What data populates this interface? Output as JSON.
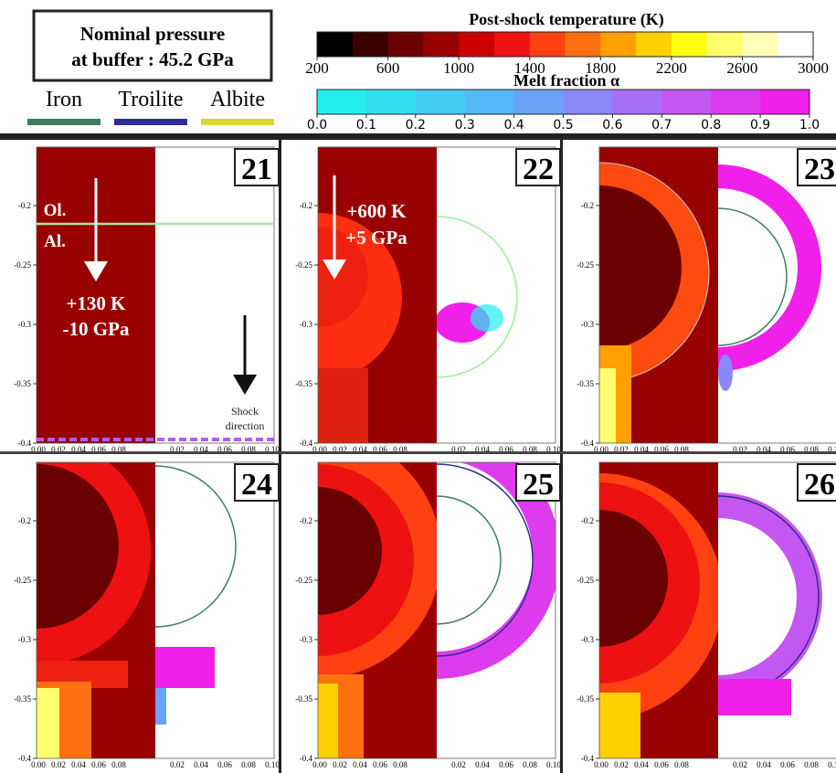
{
  "header": {
    "box": [
      "Nominal pressure",
      "at buffer : 45.2 GPa"
    ],
    "materials": [
      {
        "name": "Iron",
        "color": "#3b7d5c"
      },
      {
        "name": "Troilite",
        "color": "#2b2f8c"
      },
      {
        "name": "Albite",
        "color": "#d9d92e"
      }
    ]
  },
  "temperature_bar": {
    "title": "Post-shock temperature (K)",
    "ticks": [
      "200",
      "600",
      "1000",
      "1400",
      "1800",
      "2200",
      "2600",
      "3000"
    ],
    "colors": [
      "#000000",
      "#3a0000",
      "#6a0000",
      "#990000",
      "#cc0000",
      "#ee1111",
      "#ff4010",
      "#ff7010",
      "#ffa000",
      "#ffd000",
      "#ffff10",
      "#ffff70",
      "#ffffb8",
      "#ffffff"
    ]
  },
  "melt_bar": {
    "title": "Melt fraction α",
    "ticks": [
      "0.0",
      "0.1",
      "0.2",
      "0.3",
      "0.4",
      "0.5",
      "0.6",
      "0.7",
      "0.8",
      "0.9",
      "1.0"
    ],
    "colors": [
      "#22eeee",
      "#33ddf0",
      "#44ccf4",
      "#55b8f6",
      "#6aa2f8",
      "#8a88f8",
      "#a86ef6",
      "#c456f2",
      "#dc3cee",
      "#f020ea"
    ]
  },
  "axes": {
    "yticks": [
      "-0.2",
      "-0.25",
      "-0.3",
      "-0.35",
      "-0.4"
    ],
    "xticks_left": [
      "0.00",
      "0.02",
      "0.04",
      "0.06",
      "0.08"
    ],
    "xticks_right": [
      "0.02",
      "0.04",
      "0.06",
      "0.08",
      "0.10"
    ]
  },
  "panels": [
    "21",
    "22",
    "23",
    "24",
    "25",
    "26"
  ],
  "annotations": {
    "ol": "Ol.",
    "al": "Al.",
    "p21_temp": "+130 K",
    "p21_pres": "-10 GPa",
    "shock": "Shock",
    "direction": "direction",
    "p22_temp": "+600 K",
    "p22_pres": "+5 GPa"
  }
}
